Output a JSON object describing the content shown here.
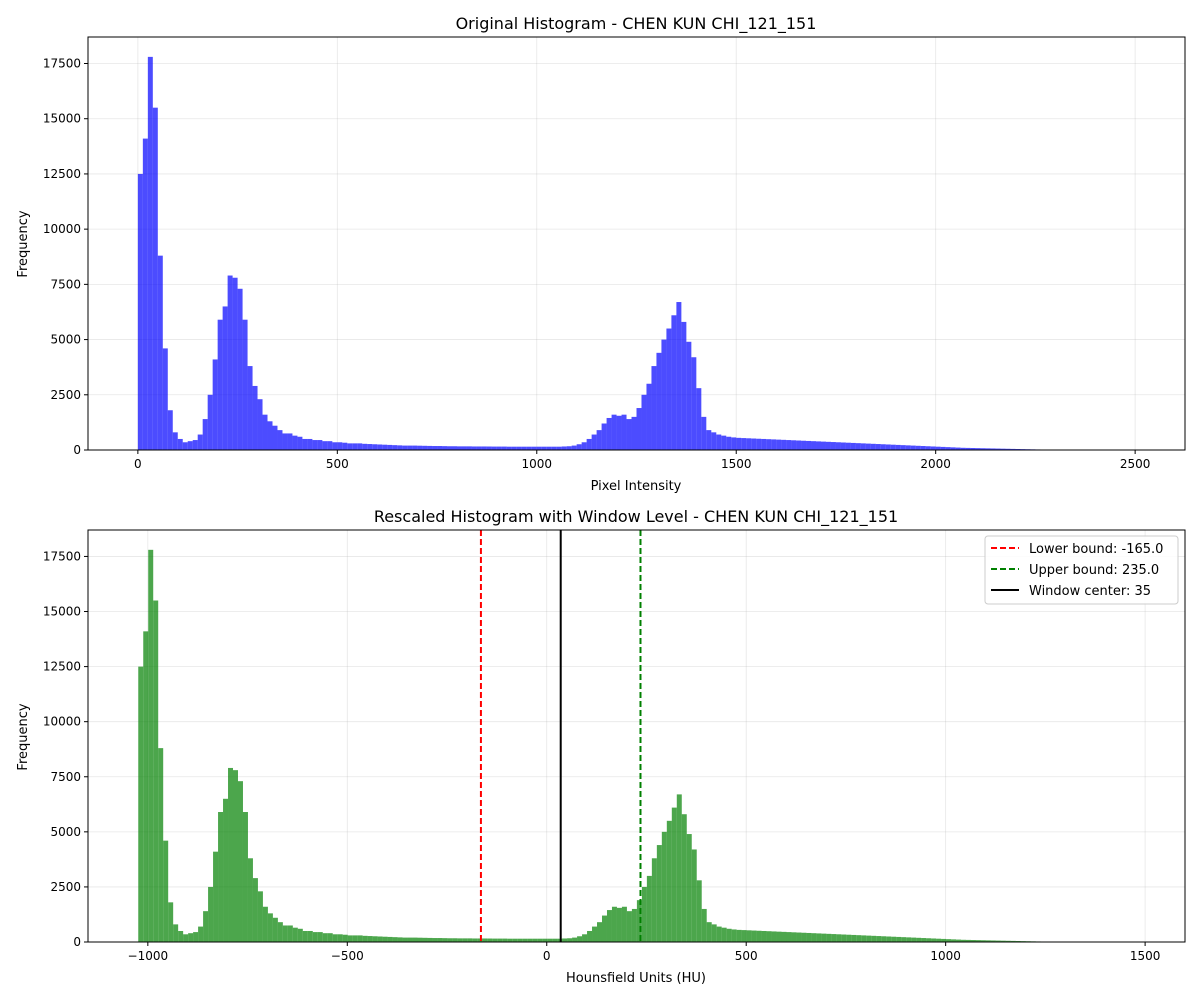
{
  "chart_data": [
    {
      "type": "bar",
      "title": "Original Histogram - CHEN KUN CHI_121_151",
      "xlabel": "Pixel Intensity",
      "ylabel": "Frequency",
      "xlim": [
        -125,
        2625
      ],
      "ylim": [
        0,
        18700
      ],
      "xticks": [
        0,
        500,
        1000,
        1500,
        2000,
        2500
      ],
      "yticks": [
        0,
        2500,
        5000,
        7500,
        10000,
        12500,
        15000,
        17500
      ],
      "grid": true,
      "color": "#0000ff",
      "bin_start": 0,
      "bin_width": 12.5,
      "counts": [
        12500,
        14100,
        17800,
        15500,
        8800,
        4600,
        1800,
        800,
        500,
        350,
        400,
        450,
        700,
        1400,
        2500,
        4100,
        5900,
        6500,
        7900,
        7800,
        7300,
        5900,
        3800,
        2900,
        2300,
        1600,
        1300,
        1100,
        900,
        750,
        750,
        650,
        600,
        500,
        500,
        450,
        450,
        400,
        400,
        350,
        350,
        330,
        300,
        300,
        300,
        280,
        270,
        260,
        250,
        240,
        230,
        220,
        210,
        200,
        200,
        200,
        195,
        190,
        185,
        180,
        180,
        175,
        170,
        170,
        165,
        165,
        165,
        160,
        160,
        160,
        158,
        155,
        155,
        155,
        150,
        150,
        150,
        150,
        150,
        150,
        150,
        150,
        150,
        150,
        150,
        160,
        170,
        200,
        260,
        350,
        500,
        700,
        900,
        1200,
        1450,
        1600,
        1550,
        1600,
        1400,
        1500,
        1900,
        2500,
        3000,
        3800,
        4400,
        5000,
        5500,
        6100,
        6700,
        5800,
        4900,
        4200,
        2800,
        1500,
        900,
        800,
        700,
        650,
        600,
        570,
        550,
        540,
        530,
        520,
        510,
        500,
        490,
        480,
        470,
        460,
        450,
        440,
        430,
        420,
        410,
        400,
        390,
        380,
        370,
        360,
        350,
        340,
        330,
        320,
        310,
        300,
        290,
        280,
        270,
        260,
        250,
        240,
        230,
        220,
        210,
        200,
        190,
        180,
        170,
        160,
        150,
        140,
        130,
        120,
        110,
        100,
        95,
        90,
        85,
        80,
        75,
        70,
        65,
        60,
        55,
        50,
        45,
        40,
        35,
        30,
        25,
        20,
        18,
        16,
        14,
        12,
        10,
        8,
        6,
        5,
        4,
        3,
        2,
        1
      ]
    },
    {
      "type": "bar",
      "title": "Rescaled Histogram with Window Level - CHEN KUN CHI_121_151",
      "xlabel": "Hounsfield Units (HU)",
      "ylabel": "Frequency",
      "xlim": [
        -1150,
        1600
      ],
      "ylim": [
        0,
        18700
      ],
      "xticks": [
        -1000,
        -500,
        0,
        500,
        1000,
        1500
      ],
      "yticks": [
        0,
        2500,
        5000,
        7500,
        10000,
        12500,
        15000,
        17500
      ],
      "grid": true,
      "color": "#008000",
      "bin_start": -1024,
      "bin_width": 12.5,
      "counts_same_as_panel": 0,
      "lines": [
        {
          "label": "Lower bound: -165.0",
          "x": -165,
          "color": "#ff0000",
          "style": "dashed"
        },
        {
          "label": "Upper bound: 235.0",
          "x": 235,
          "color": "#008000",
          "style": "dashed"
        },
        {
          "label": "Window center: 35",
          "x": 35,
          "color": "#000000",
          "style": "solid"
        }
      ],
      "legend_position": "top-right"
    }
  ]
}
